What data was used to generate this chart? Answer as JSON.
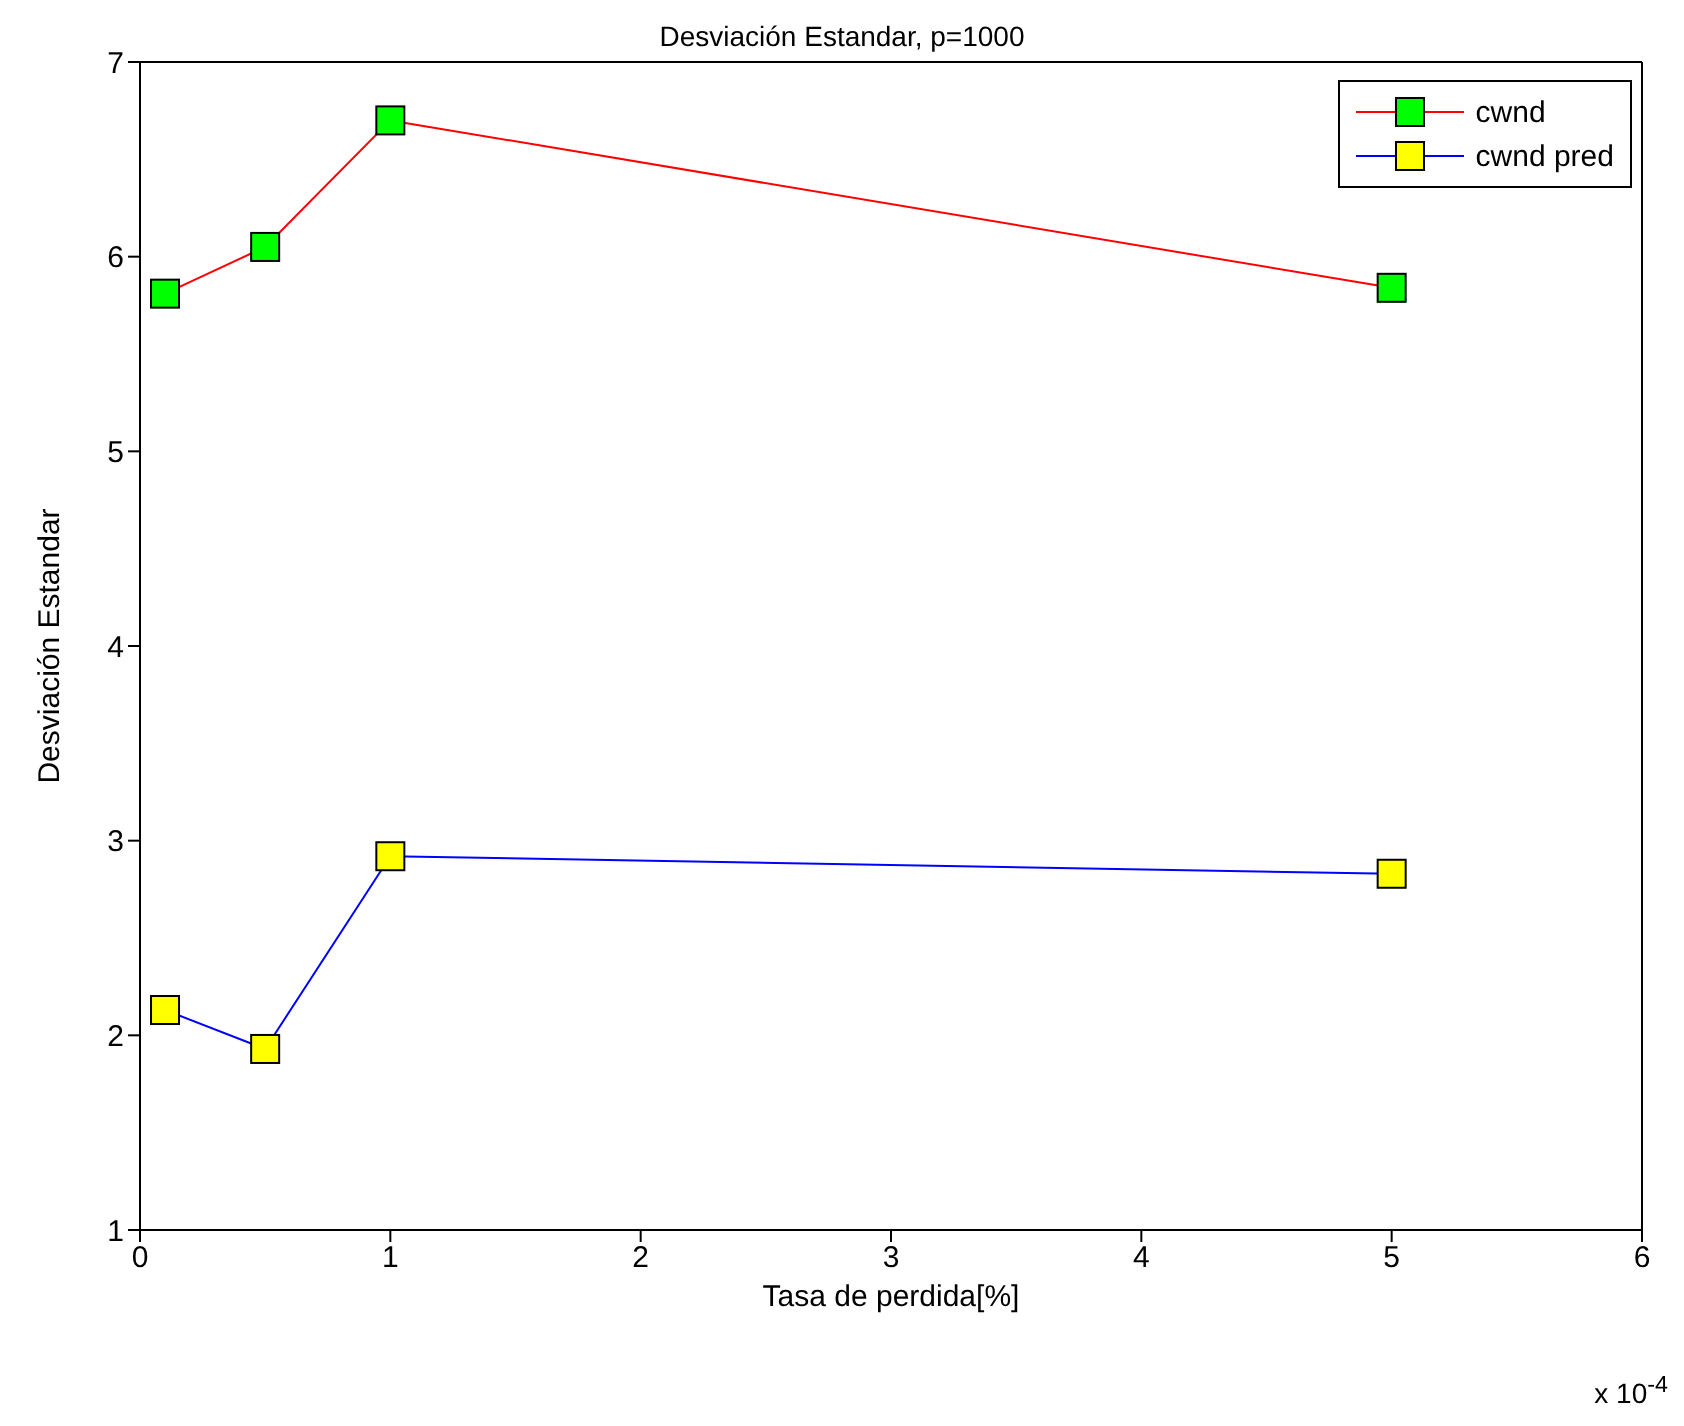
{
  "chart_data": {
    "type": "line",
    "title": "Desviación Estandar, p=1000",
    "xlabel": "Tasa de perdida[%]",
    "ylabel": "Desviación Estandar",
    "annotations": [
      "x 10$^{-4}$"
    ],
    "x": [
      0.1,
      0.5,
      1,
      5
    ],
    "series": [
      {
        "name": "cwnd",
        "color": "#ff0000",
        "colors": [
          "#00ff00",
          "#00ff00",
          "#00ff00",
          "#00ff00"
        ],
        "values": [
          5.81,
          6.05,
          6.7,
          5.84
        ]
      },
      {
        "name": "cwnd pred",
        "color": "#0000ff",
        "colors": [
          "#ffff00",
          "#ffff00",
          "#ffff00",
          "#ffff00"
        ],
        "values": [
          2.13,
          1.93,
          2.92,
          2.83
        ]
      }
    ],
    "xlim": [
      0,
      6
    ],
    "xticks": [
      0,
      1,
      2,
      3,
      4,
      5,
      6
    ],
    "ylim": [
      1,
      7
    ],
    "yticks": [
      1,
      2,
      3,
      4,
      5,
      6,
      7
    ],
    "legend": "top right",
    "marker": "square",
    "line_style": "solid"
  }
}
